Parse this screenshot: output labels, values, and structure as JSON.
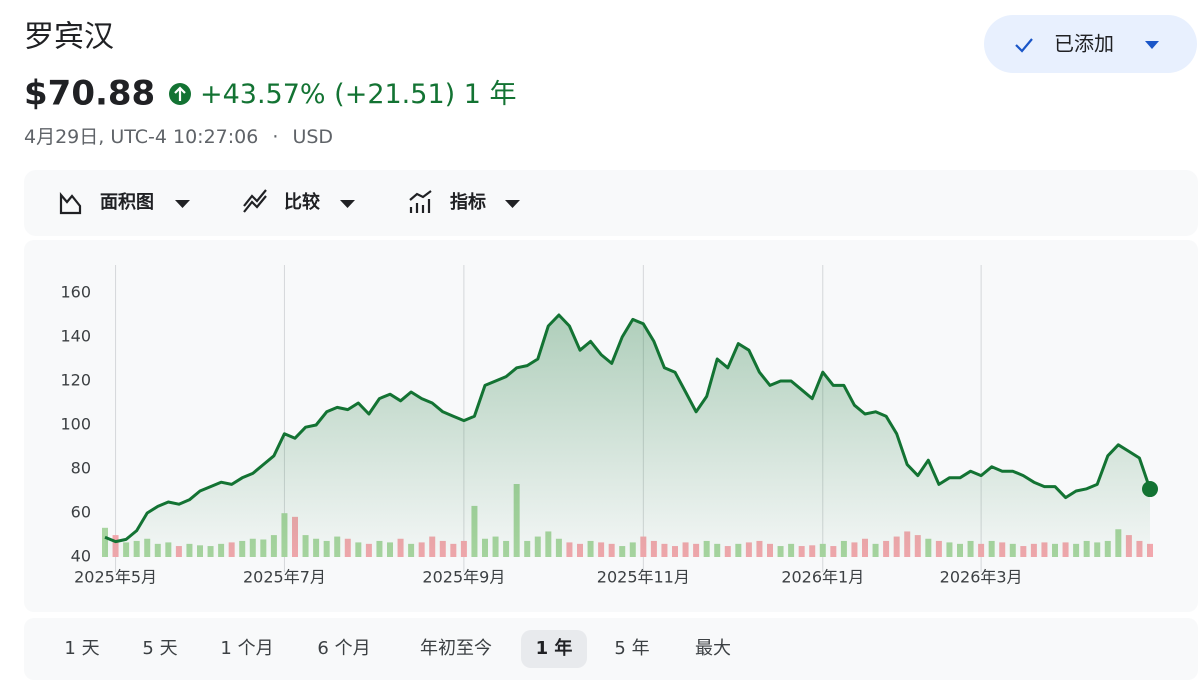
{
  "header": {
    "title": "罗宾汉",
    "price": "$70.88",
    "change_percent": "+43.57%",
    "change_value": "(+21.51)",
    "period": "1 年",
    "timestamp": "4月29日, UTC-4 10:27:06",
    "separator": "·",
    "currency": "USD",
    "follow_button": "已添加"
  },
  "toolbar": [
    "面积图",
    "比较",
    "指标"
  ],
  "chart_data": {
    "type": "area",
    "color": "#137333",
    "categories": [
      null,
      "2025年5月",
      null,
      null,
      null,
      null,
      null,
      null,
      null,
      null,
      null,
      null,
      null,
      null,
      null,
      null,
      null,
      "2025年7月",
      null,
      null,
      null,
      null,
      null,
      null,
      null,
      null,
      null,
      null,
      null,
      null,
      null,
      null,
      null,
      null,
      "2025年9月",
      null,
      null,
      null,
      null,
      null,
      null,
      null,
      null,
      null,
      null,
      null,
      null,
      null,
      null,
      null,
      null,
      "2025年11月",
      null,
      null,
      null,
      null,
      null,
      null,
      null,
      null,
      null,
      null,
      null,
      null,
      null,
      null,
      null,
      null,
      "2026年1月",
      null,
      null,
      null,
      null,
      null,
      null,
      null,
      null,
      null,
      null,
      null,
      null,
      null,
      null,
      "2026年3月",
      null,
      null,
      null,
      null,
      null,
      null,
      null,
      null,
      null,
      null,
      null,
      null,
      null,
      null,
      null,
      null
    ],
    "values": [
      49,
      47,
      48,
      52,
      60,
      63,
      65,
      64,
      66,
      70,
      72,
      74,
      73,
      76,
      78,
      82,
      86,
      96,
      94,
      99,
      100,
      106,
      108,
      107,
      110,
      105,
      112,
      114,
      111,
      115,
      112,
      110,
      106,
      104,
      102,
      104,
      118,
      120,
      122,
      126,
      127,
      130,
      145,
      150,
      145,
      134,
      138,
      132,
      128,
      140,
      148,
      146,
      138,
      126,
      124,
      115,
      106,
      113,
      130,
      126,
      137,
      134,
      124,
      118,
      120,
      120,
      116,
      112,
      124,
      118,
      118,
      109,
      105,
      106,
      104,
      96,
      82,
      77,
      84,
      73,
      76,
      76,
      79,
      77,
      81,
      79,
      79,
      77,
      74,
      72,
      72,
      67,
      70,
      71,
      73,
      86,
      91,
      88,
      85,
      70.88
    ],
    "volume": {
      "axis": "y2",
      "up_color": "#a8d5a0",
      "down_color": "#f2a7ad",
      "values": [
        40,
        30,
        20,
        22,
        25,
        18,
        20,
        15,
        18,
        16,
        15,
        18,
        20,
        22,
        25,
        24,
        30,
        60,
        55,
        30,
        25,
        22,
        28,
        25,
        20,
        18,
        22,
        20,
        25,
        18,
        20,
        28,
        22,
        18,
        22,
        70,
        25,
        28,
        22,
        100,
        22,
        28,
        35,
        25,
        20,
        18,
        22,
        20,
        18,
        15,
        20,
        28,
        22,
        18,
        15,
        20,
        18,
        22,
        18,
        15,
        18,
        20,
        22,
        18,
        15,
        18,
        15,
        16,
        18,
        15,
        22,
        20,
        25,
        18,
        22,
        28,
        35,
        30,
        25,
        22,
        20,
        18,
        22,
        18,
        22,
        20,
        18,
        15,
        18,
        20,
        18,
        20,
        18,
        22,
        20,
        22,
        38,
        30,
        22,
        18
      ]
    },
    "ylim": [
      40,
      172.7
    ],
    "yticks": [
      40,
      60,
      80,
      100,
      120,
      140,
      160
    ],
    "y2lim": [
      0,
      400
    ],
    "grid": true
  },
  "ranges": {
    "options": [
      "1 天",
      "5 天",
      "1 个月",
      "6 个月",
      "年初至今",
      "1 年",
      "5 年",
      "最大"
    ],
    "selected": 5
  }
}
